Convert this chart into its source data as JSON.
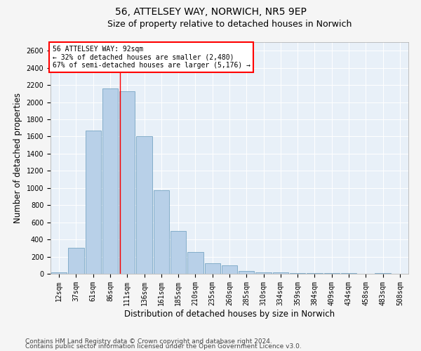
{
  "title": "56, ATTELSEY WAY, NORWICH, NR5 9EP",
  "subtitle": "Size of property relative to detached houses in Norwich",
  "xlabel": "Distribution of detached houses by size in Norwich",
  "ylabel": "Number of detached properties",
  "categories": [
    "12sqm",
    "37sqm",
    "61sqm",
    "86sqm",
    "111sqm",
    "136sqm",
    "161sqm",
    "185sqm",
    "210sqm",
    "235sqm",
    "260sqm",
    "285sqm",
    "310sqm",
    "334sqm",
    "359sqm",
    "384sqm",
    "409sqm",
    "434sqm",
    "458sqm",
    "483sqm",
    "508sqm"
  ],
  "values": [
    20,
    300,
    1670,
    2160,
    2130,
    1600,
    975,
    500,
    250,
    125,
    100,
    35,
    20,
    15,
    5,
    10,
    5,
    5,
    0,
    10,
    0
  ],
  "bar_color": "#b8d0e8",
  "bar_edge_color": "#6699bb",
  "background_color": "#e8f0f8",
  "grid_color": "#ffffff",
  "red_line_x": 3.58,
  "annotation_text": "56 ATTELSEY WAY: 92sqm\n← 32% of detached houses are smaller (2,480)\n67% of semi-detached houses are larger (5,176) →",
  "annotation_box_color": "#ff0000",
  "ylim": [
    0,
    2700
  ],
  "yticks": [
    0,
    200,
    400,
    600,
    800,
    1000,
    1200,
    1400,
    1600,
    1800,
    2000,
    2200,
    2400,
    2600
  ],
  "footer_line1": "Contains HM Land Registry data © Crown copyright and database right 2024.",
  "footer_line2": "Contains public sector information licensed under the Open Government Licence v3.0.",
  "title_fontsize": 10,
  "subtitle_fontsize": 9,
  "axis_label_fontsize": 8.5,
  "tick_fontsize": 7,
  "footer_fontsize": 6.5
}
